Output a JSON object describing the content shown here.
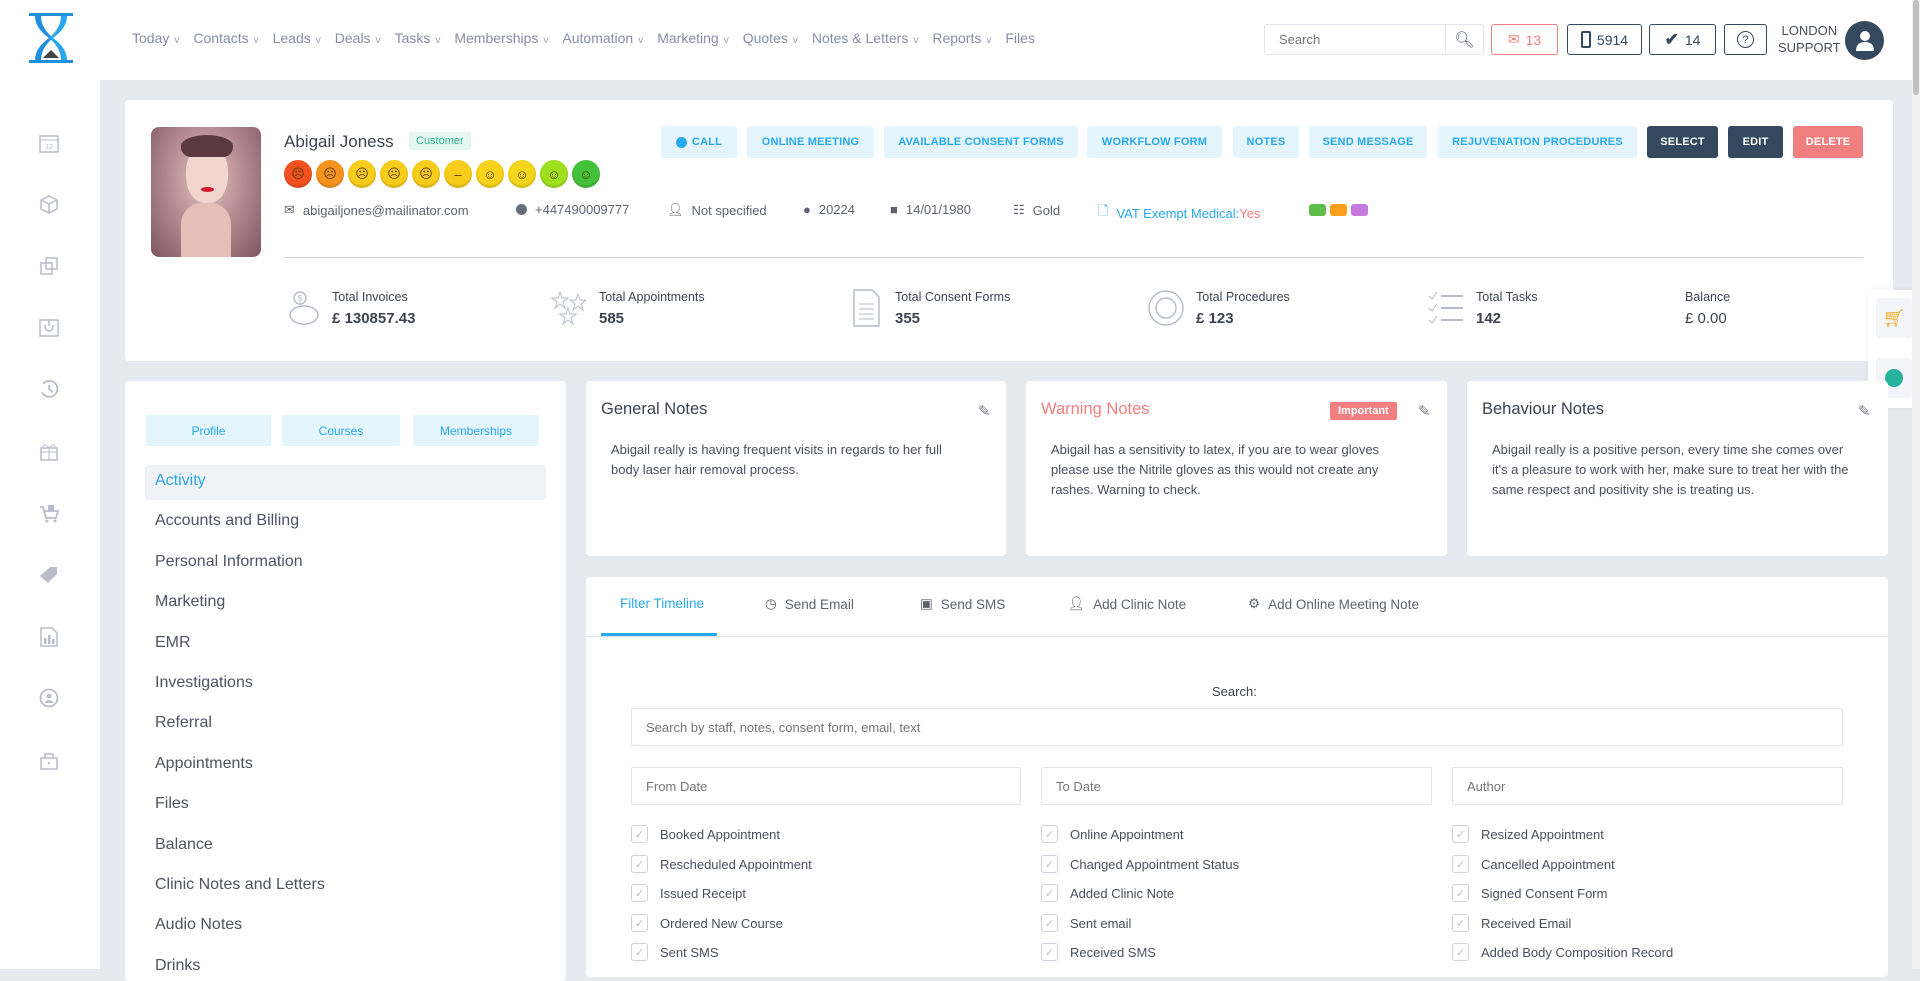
{
  "nav": {
    "items": [
      {
        "label": "Today"
      },
      {
        "label": "Contacts"
      },
      {
        "label": "Leads"
      },
      {
        "label": "Deals"
      },
      {
        "label": "Tasks"
      },
      {
        "label": "Memberships"
      },
      {
        "label": "Automation"
      },
      {
        "label": "Marketing"
      },
      {
        "label": "Quotes"
      },
      {
        "label": "Notes & Letters"
      },
      {
        "label": "Reports"
      },
      {
        "label": "Files"
      }
    ],
    "chevron": "v"
  },
  "header": {
    "search_placeholder": "Search",
    "mail_count": "13",
    "phone_count": "5914",
    "tasks_count": "14",
    "help": "?",
    "user_line1": "LONDON",
    "user_line2": "SUPPORT"
  },
  "sidebar": {
    "icons": [
      "calendar-icon",
      "box-icon",
      "copy-icon",
      "inbox-icon",
      "history-icon",
      "gift-icon",
      "cart-icon",
      "tag-icon",
      "report-icon",
      "user-sync-icon",
      "lock-icon"
    ]
  },
  "profile": {
    "name": "Abigail Joness",
    "badge": "Customer",
    "actions": {
      "call": "CALL",
      "online_meeting": "ONLINE MEETING",
      "consent": "AVAILABLE CONSENT FORMS",
      "workflow": "WORKFLOW FORM",
      "notes": "NOTES",
      "send_message": "SEND MESSAGE",
      "rejuvenation": "REJUVENATION PROCEDURES",
      "select": "SELECT",
      "edit": "EDIT",
      "delete": "DELETE"
    },
    "mood_colors": [
      "#f2521f",
      "#f6921e",
      "#f8cc1b",
      "#f8cc1b",
      "#f8cc1b",
      "#f8cc1b",
      "#f8d21b",
      "#f3d51b",
      "#9ee01e",
      "#44c13a"
    ],
    "email": "abigailjones@mailinator.com",
    "phone": "+447490009777",
    "gender": "Not specified",
    "id": "20224",
    "dob": "14/01/1980",
    "tier": "Gold",
    "vat_label": "VAT Exempt Medical:",
    "vat_value": "Yes",
    "tag_colors": [
      "#5ebd4b",
      "#f99f1b",
      "#c67ae0"
    ],
    "stats": [
      {
        "label": "Total Invoices",
        "value": "£ 130857.43"
      },
      {
        "label": "Total Appointments",
        "value": "585"
      },
      {
        "label": "Total Consent Forms",
        "value": "355"
      },
      {
        "label": "Total Procedures",
        "value": "£ 123"
      },
      {
        "label": "Total Tasks",
        "value": "142"
      },
      {
        "label": "Balance",
        "value": "£ 0.00"
      }
    ]
  },
  "left_tabs": {
    "profile": "Profile",
    "courses": "Courses",
    "memberships": "Memberships"
  },
  "menu": {
    "items": [
      "Activity",
      "Accounts and Billing",
      "Personal Information",
      "Marketing",
      "EMR",
      "Investigations",
      "Referral",
      "Appointments",
      "Files",
      "Balance",
      "Clinic Notes and Letters",
      "Audio Notes",
      "Drinks"
    ]
  },
  "notes": {
    "general": {
      "title": "General Notes",
      "text": "Abigail really is having frequent visits in regards to her full body laser hair removal process."
    },
    "warning": {
      "title": "Warning Notes",
      "badge": "Important",
      "text": "Abigail has a sensitivity to latex, if you are to wear gloves please use the Nitrile gloves as this would not create any rashes. Warning to check."
    },
    "behaviour": {
      "title": "Behaviour Notes",
      "text": "Abigail really is a positive person, every time she comes over it's a pleasure to work with her, make sure to treat her with the same respect and positivity she is treating us."
    }
  },
  "timeline": {
    "tabs": [
      "Filter Timeline",
      "Send Email",
      "Send SMS",
      "Add Clinic Note",
      "Add Online Meeting Note"
    ],
    "search_label": "Search:",
    "search_placeholder": "Search by staff, notes, consent form, email, text",
    "from_placeholder": "From Date",
    "to_placeholder": "To Date",
    "author_placeholder": "Author",
    "filters": [
      [
        "Booked Appointment",
        "Online Appointment",
        "Resized Appointment"
      ],
      [
        "Rescheduled Appointment",
        "Changed Appointment Status",
        "Cancelled Appointment"
      ],
      [
        "Issued Receipt",
        "Added Clinic Note",
        "Signed Consent Form"
      ],
      [
        "Ordered New Course",
        "Sent email",
        "Received Email"
      ],
      [
        "Sent SMS",
        "Received SMS",
        "Added Body Composition Record"
      ]
    ]
  },
  "colors": {
    "accent": "#27a9ef",
    "dark": "#34495e",
    "danger": "#f27f7f"
  }
}
